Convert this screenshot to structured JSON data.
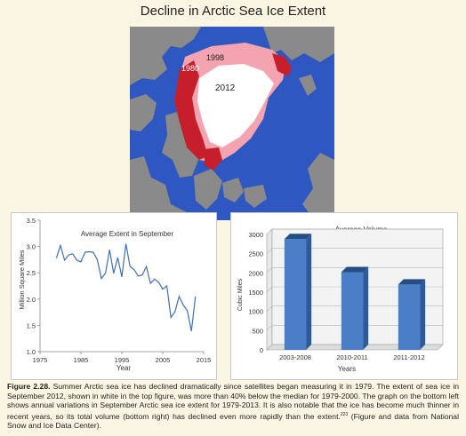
{
  "page": {
    "title": "Decline in Arctic Sea Ice Extent"
  },
  "map": {
    "labels": [
      "1980",
      "1998",
      "2012"
    ],
    "colors": {
      "ocean": "#2e57c2",
      "land": "#8a8a8a",
      "ice_1980": "#c51f2c",
      "ice_1998": "#f4a3b0",
      "ice_2012": "#ffffff"
    }
  },
  "caption": {
    "label": "Figure 2.28.",
    "text": "Summer Arctic sea ice has declined dramatically since satellites began measuring it in 1979. The extent of sea ice in September 2012, shown in white in the top figure, was more than 40% below the median for 1979-2000. The graph on the bottom left shows annual variations in September Arctic sea ice extent for 1979-2013. It is also notable that the ice has become much thinner in recent years, so its total volume (bottom right) has declined even more rapidly than the extent.",
    "ref": "223",
    "source": "(Figure and data from National Snow and Ice Data Center)."
  },
  "chart_data": [
    {
      "type": "line",
      "title": "Average Extent in September",
      "xlabel": "Year",
      "ylabel": "Million Square Miles",
      "xlim": [
        1975,
        2015
      ],
      "ylim": [
        1.0,
        3.5
      ],
      "xticks": [
        1975,
        1985,
        1995,
        2005,
        2015
      ],
      "yticks": [
        1.0,
        1.5,
        2.0,
        2.5,
        3.0,
        3.5
      ],
      "grid": false,
      "x": [
        1979,
        1980,
        1981,
        1982,
        1983,
        1984,
        1985,
        1986,
        1987,
        1988,
        1989,
        1990,
        1991,
        1992,
        1993,
        1994,
        1995,
        1996,
        1997,
        1998,
        1999,
        2000,
        2001,
        2002,
        2003,
        2004,
        2005,
        2006,
        2007,
        2008,
        2009,
        2010,
        2011,
        2012,
        2013
      ],
      "values": [
        2.78,
        3.02,
        2.74,
        2.84,
        2.86,
        2.74,
        2.71,
        2.89,
        2.9,
        2.89,
        2.75,
        2.39,
        2.49,
        2.94,
        2.49,
        2.79,
        2.42,
        3.05,
        2.62,
        2.56,
        2.44,
        2.46,
        2.62,
        2.3,
        2.38,
        2.32,
        2.19,
        2.25,
        1.65,
        1.76,
        2.05,
        1.89,
        1.78,
        1.39,
        2.05
      ],
      "color": "#3f6fb5"
    },
    {
      "type": "bar",
      "title": "Average Volume",
      "xlabel": "Years",
      "ylabel": "Cubic Miles",
      "ylim": [
        0,
        3000
      ],
      "yticks": [
        0,
        500,
        1000,
        1500,
        2000,
        2500,
        3000
      ],
      "grid": true,
      "categories": [
        "2003-2008",
        "2010-2011",
        "2011-2012"
      ],
      "values": [
        2880,
        2020,
        1700
      ],
      "color": "#4a7fc7"
    }
  ]
}
